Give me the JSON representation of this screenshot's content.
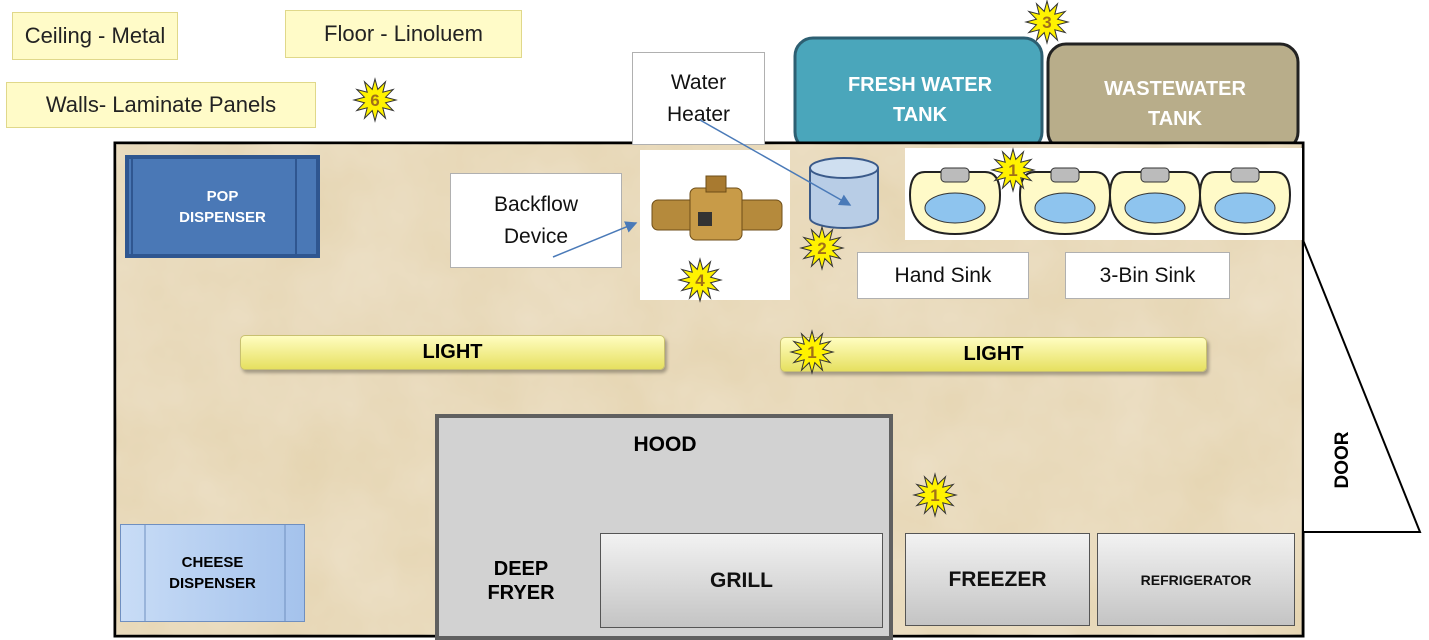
{
  "labels": {
    "ceiling": "Ceiling - Metal",
    "floor": "Floor - Linoluem",
    "walls": "Walls- Laminate Panels"
  },
  "tanks": {
    "fresh": "FRESH WATER TANK",
    "waste": "WASTEWATER TANK"
  },
  "callouts": {
    "water_heater": "Water Heater",
    "backflow": "Backflow Device",
    "hand_sink": "Hand Sink",
    "three_bin_sink": "3-Bin Sink"
  },
  "equipment": {
    "pop": "POP DISPENSER",
    "light_left": "LIGHT",
    "light_right": "LIGHT",
    "hood": "HOOD",
    "deep_fryer": "DEEP FRYER",
    "grill": "GRILL",
    "freezer": "FREEZER",
    "refrigerator": "REFRIGERATOR",
    "cheese": "CHEESE DISPENSER",
    "door": "DOOR"
  },
  "badges": [
    "3",
    "6",
    "1",
    "2",
    "4",
    "1",
    "1"
  ]
}
